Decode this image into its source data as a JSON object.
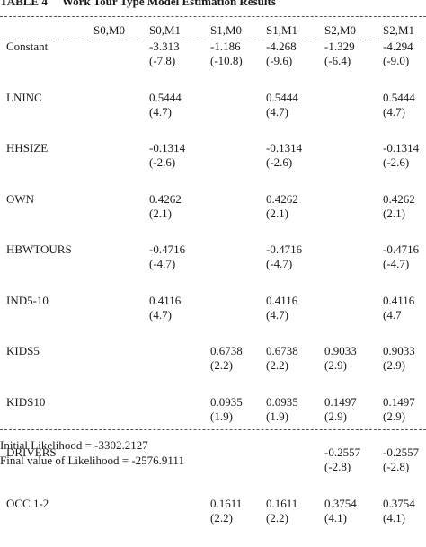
{
  "table": {
    "number": "TABLE 4",
    "title": "Work Tour Type Model Estimation Results",
    "columns": [
      "S0,M0",
      "S0,M1",
      "S1,M0",
      "S1,M1",
      "S2,M0",
      "S2,M1"
    ],
    "rows": [
      {
        "label": "Constant",
        "cells": [
          null,
          {
            "coef": "-3.313",
            "t": "(-7.8)"
          },
          {
            "coef": "-1.186",
            "t": "(-10.8)"
          },
          {
            "coef": "-4.268",
            "t": "(-9.6)"
          },
          {
            "coef": "-1.329",
            "t": "(-6.4)"
          },
          {
            "coef": "-4.294",
            "t": "(-9.0)"
          }
        ]
      },
      {
        "label": "LNINC",
        "cells": [
          null,
          {
            "coef": "0.5444",
            "t": "(4.7)"
          },
          null,
          {
            "coef": "0.5444",
            "t": "(4.7)"
          },
          null,
          {
            "coef": "0.5444",
            "t": "(4.7)"
          }
        ]
      },
      {
        "label": "HHSIZE",
        "cells": [
          null,
          {
            "coef": "-0.1314",
            "t": "(-2.6)"
          },
          null,
          {
            "coef": "-0.1314",
            "t": "(-2.6)"
          },
          null,
          {
            "coef": "-0.1314",
            "t": "(-2.6)"
          }
        ]
      },
      {
        "label": "OWN",
        "cells": [
          null,
          {
            "coef": "0.4262",
            "t": "(2.1)"
          },
          null,
          {
            "coef": "0.4262",
            "t": "(2.1)"
          },
          null,
          {
            "coef": "0.4262",
            "t": "(2.1)"
          }
        ]
      },
      {
        "label": "HBWTOURS",
        "cells": [
          null,
          {
            "coef": "-0.4716",
            "t": "(-4.7)"
          },
          null,
          {
            "coef": "-0.4716",
            "t": "(-4.7)"
          },
          null,
          {
            "coef": "-0.4716",
            "t": "(-4.7)"
          }
        ]
      },
      {
        "label": "IND5-10",
        "cells": [
          null,
          {
            "coef": "0.4116",
            "t": "(4.7)"
          },
          null,
          {
            "coef": "0.4116",
            "t": "(4.7)"
          },
          null,
          {
            "coef": "0.4116",
            "t": "(4.7"
          }
        ]
      },
      {
        "label": "KIDS5",
        "cells": [
          null,
          null,
          {
            "coef": "0.6738",
            "t": "(2.2)"
          },
          {
            "coef": "0.6738",
            "t": "(2.2)"
          },
          {
            "coef": "0.9033",
            "t": "(2.9)"
          },
          {
            "coef": "0.9033",
            "t": "(2.9)"
          }
        ]
      },
      {
        "label": "KIDS10",
        "cells": [
          null,
          null,
          {
            "coef": "0.0935",
            "t": "(1.9)"
          },
          {
            "coef": "0.0935",
            "t": "(1.9)"
          },
          {
            "coef": "0.1497",
            "t": "(2.9)"
          },
          {
            "coef": "0.1497",
            "t": "(2.9)"
          }
        ]
      },
      {
        "label": "DRIVERS",
        "cells": [
          null,
          null,
          null,
          null,
          {
            "coef": "-0.2557",
            "t": "(-2.8)"
          },
          {
            "coef": "-0.2557",
            "t": "(-2.8)"
          }
        ]
      },
      {
        "label": "OCC 1-2",
        "cells": [
          null,
          null,
          {
            "coef": "0.1611",
            "t": "(2.2)"
          },
          {
            "coef": "0.1611",
            "t": "(2.2)"
          },
          {
            "coef": "0.3754",
            "t": "(4.1)"
          },
          {
            "coef": "0.3754",
            "t": "(4.1)"
          }
        ]
      }
    ]
  },
  "footer": {
    "initial_likelihood": "Initial Likelihood = -3302.2127",
    "final_likelihood": "Final value of Likelihood = -2576.9111"
  }
}
